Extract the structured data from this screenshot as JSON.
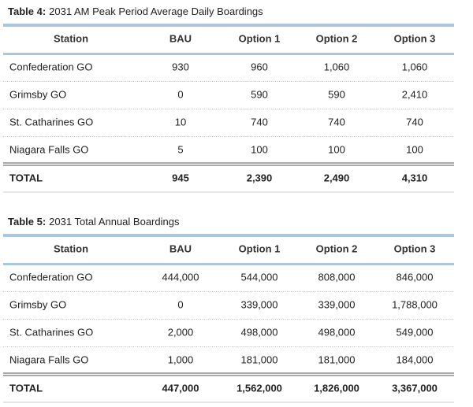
{
  "tables": [
    {
      "title": {
        "label": "Table 4:",
        "text": "2031 AM Peak Period Average Daily Boardings"
      },
      "columns": [
        "Station",
        "BAU",
        "Option 1",
        "Option 2",
        "Option 3"
      ],
      "rows": [
        [
          "Confederation GO",
          "930",
          "960",
          "1,060",
          "1,060"
        ],
        [
          "Grimsby GO",
          "0",
          "590",
          "590",
          "2,410"
        ],
        [
          "St. Catharines GO",
          "10",
          "740",
          "740",
          "740"
        ],
        [
          "Niagara Falls GO",
          "5",
          "100",
          "100",
          "100"
        ]
      ],
      "total": [
        "TOTAL",
        "945",
        "2,390",
        "2,490",
        "4,310"
      ]
    },
    {
      "title": {
        "label": "Table 5:",
        "text": "2031 Total Annual Boardings"
      },
      "columns": [
        "Station",
        "BAU",
        "Option 1",
        "Option 2",
        "Option 3"
      ],
      "rows": [
        [
          "Confederation GO",
          "444,000",
          "544,000",
          "808,000",
          "846,000"
        ],
        [
          "Grimsby GO",
          "0",
          "339,000",
          "339,000",
          "1,788,000"
        ],
        [
          "St. Catharines GO",
          "2,000",
          "498,000",
          "498,000",
          "549,000"
        ],
        [
          "Niagara Falls GO",
          "1,000",
          "181,000",
          "181,000",
          "184,000"
        ]
      ],
      "total": [
        "TOTAL",
        "447,000",
        "1,562,000",
        "1,826,000",
        "3,367,000"
      ]
    }
  ]
}
